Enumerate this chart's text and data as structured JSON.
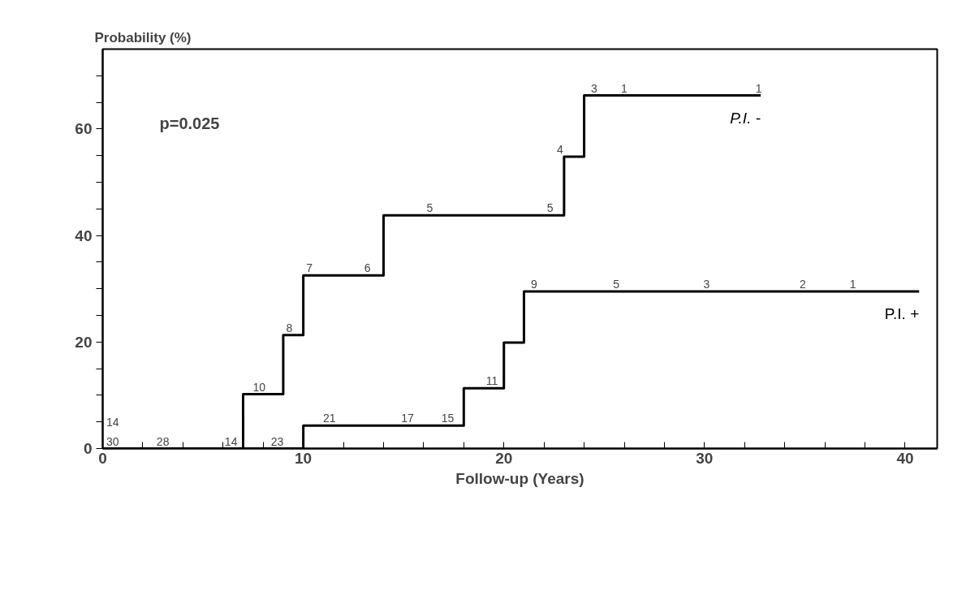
{
  "chart_data": {
    "type": "step",
    "xlabel": "Follow-up (Years)",
    "ylabel": "Probability (%)",
    "xlim": [
      0,
      41.6
    ],
    "ylim": [
      0,
      75
    ],
    "xticks": [
      0,
      {
        "value": 2,
        "label": null
      },
      {
        "value": 4,
        "label": null
      },
      {
        "value": 6,
        "label": null
      },
      {
        "value": 8,
        "label": null
      },
      10,
      {
        "value": 12,
        "label": null
      },
      {
        "value": 14,
        "label": null
      },
      {
        "value": 16,
        "label": null
      },
      {
        "value": 18,
        "label": null
      },
      20,
      {
        "value": 22,
        "label": null
      },
      {
        "value": 24,
        "label": null
      },
      {
        "value": 26,
        "label": null
      },
      {
        "value": 28,
        "label": null
      },
      30,
      {
        "value": 32,
        "label": null
      },
      {
        "value": 34,
        "label": null
      },
      {
        "value": 36,
        "label": null
      },
      {
        "value": 38,
        "label": null
      },
      40
    ],
    "yticks": [
      0,
      {
        "value": 5,
        "label": null
      },
      {
        "value": 10,
        "label": null
      },
      {
        "value": 15,
        "label": null
      },
      20,
      {
        "value": 25,
        "label": null
      },
      {
        "value": 30,
        "label": null
      },
      {
        "value": 35,
        "label": null
      },
      40,
      {
        "value": 45,
        "label": null
      },
      {
        "value": 50,
        "label": null
      },
      {
        "value": 55,
        "label": null
      },
      60,
      {
        "value": 65,
        "label": null
      },
      {
        "value": 70,
        "label": null
      }
    ],
    "grid": false,
    "marker": "none",
    "line_style": "solid",
    "series": [
      {
        "name": "P.I. -",
        "color": "#000000",
        "x": [
          0,
          7,
          9,
          10,
          14,
          23,
          24,
          32.8
        ],
        "values": [
          0,
          10.2,
          21.3,
          32.5,
          43.8,
          54.8,
          66.3,
          66.3
        ]
      },
      {
        "name": "P.I. +",
        "color": "#000000",
        "x": [
          0,
          10,
          18,
          20,
          21,
          40.7
        ],
        "values": [
          0,
          4.3,
          11.3,
          19.9,
          29.5,
          29.5
        ]
      }
    ],
    "annotations": [
      "p=0.025",
      {
        "text": "30",
        "x": 0.5,
        "y": 0
      },
      {
        "text": "28",
        "x": 3,
        "y": 0
      },
      {
        "text": "23",
        "x": 8.7,
        "y": 0
      },
      {
        "text": "21",
        "x": 11.3,
        "y": 4.3
      },
      {
        "text": "17",
        "x": 15.2,
        "y": 4.3
      },
      {
        "text": "15",
        "x": 17.2,
        "y": 4.3
      },
      {
        "text": "11",
        "x": 19.4,
        "y": 11.3
      },
      {
        "text": "9",
        "x": 21.5,
        "y": 29.5
      },
      {
        "text": "5",
        "x": 25.6,
        "y": 29.5
      },
      {
        "text": "3",
        "x": 30.1,
        "y": 29.5
      },
      {
        "text": "2",
        "x": 34.9,
        "y": 29.5
      },
      {
        "text": "1",
        "x": 37.4,
        "y": 29.5
      },
      {
        "text": "14",
        "x": 0.5,
        "y": 0
      },
      {
        "text": "14",
        "x": 6.4,
        "y": 0
      },
      {
        "text": "10",
        "x": 7.8,
        "y": 10.2
      },
      {
        "text": "8",
        "x": 9.3,
        "y": 21.3
      },
      {
        "text": "7",
        "x": 10.3,
        "y": 32.5
      },
      {
        "text": "6",
        "x": 13.2,
        "y": 32.5
      },
      {
        "text": "5",
        "x": 16.3,
        "y": 43.8
      },
      {
        "text": "5",
        "x": 22.3,
        "y": 43.8
      },
      {
        "text": "4",
        "x": 22.8,
        "y": 54.8
      },
      {
        "text": "3",
        "x": 24.5,
        "y": 66.3
      },
      {
        "text": "1",
        "x": 26,
        "y": 66.3
      },
      {
        "text": "1",
        "x": 32.7,
        "y": 66.3
      }
    ]
  }
}
